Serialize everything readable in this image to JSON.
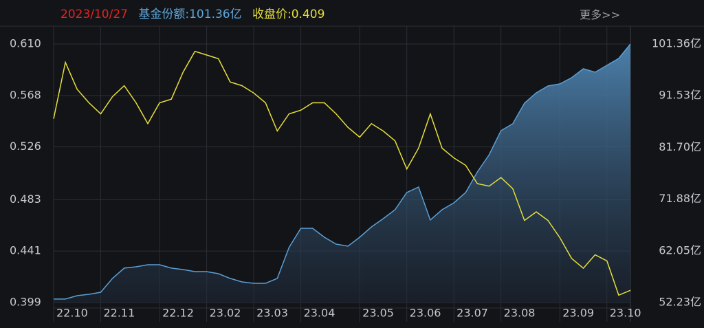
{
  "header": {
    "date": "2023/10/27",
    "share": "基金份额:101.36亿",
    "price": "收盘价:0.409",
    "more": "更多>>"
  },
  "chart_data": {
    "type": "line",
    "categories": [
      "22.10",
      null,
      null,
      null,
      "22.11",
      null,
      null,
      null,
      null,
      "22.12",
      null,
      null,
      null,
      "23.02",
      null,
      null,
      null,
      "23.03",
      null,
      null,
      null,
      "23.04",
      null,
      null,
      null,
      null,
      "23.05",
      null,
      null,
      null,
      "23.06",
      null,
      null,
      null,
      "23.07",
      null,
      null,
      null,
      "23.08",
      null,
      null,
      null,
      null,
      "23.09",
      null,
      null,
      null,
      "23.10",
      null,
      null
    ],
    "series": [
      {
        "color": "#e6df3c",
        "values": [
          0.549,
          0.595,
          0.573,
          0.562,
          0.553,
          0.567,
          0.576,
          0.562,
          0.545,
          0.562,
          0.565,
          0.587,
          0.604,
          0.601,
          0.598,
          0.579,
          0.576,
          0.57,
          0.562,
          0.539,
          0.553,
          0.556,
          0.562,
          0.562,
          0.553,
          0.542,
          0.534,
          0.545,
          0.539,
          0.531,
          0.508,
          0.525,
          0.553,
          0.525,
          0.517,
          0.511,
          0.496,
          0.494,
          0.501,
          0.492,
          0.466,
          0.473,
          0.466,
          0.452,
          0.435,
          0.427,
          0.438,
          0.433,
          0.405,
          0.409
        ]
      },
      {
        "color": "#5a9fd6",
        "axis": "y2",
        "values": [
          52.89,
          52.89,
          53.54,
          53.8,
          54.19,
          56.81,
          58.77,
          59.03,
          59.42,
          59.42,
          58.77,
          58.5,
          58.11,
          58.11,
          57.72,
          56.81,
          56.15,
          55.89,
          55.89,
          56.81,
          62.68,
          66.34,
          66.34,
          64.64,
          63.34,
          62.95,
          64.64,
          66.6,
          68.17,
          69.87,
          73.14,
          74.18,
          67.91,
          69.87,
          71.18,
          73.14,
          77.06,
          80.32,
          84.9,
          86.2,
          90.12,
          92.08,
          93.39,
          93.78,
          94.96,
          96.66,
          96.0,
          97.31,
          98.62,
          101.36
        ]
      }
    ],
    "ylim": [
      0.399,
      0.61
    ],
    "yticks": [
      0.399,
      0.441,
      0.483,
      0.526,
      0.568,
      {
        "value": 0.61,
        "label": "0.610"
      }
    ],
    "y2lim": [
      52.23,
      101.36
    ],
    "y2ticks": [
      {
        "value": 52.23,
        "label": "52.23亿"
      },
      {
        "value": 62.05,
        "label": "62.05亿"
      },
      {
        "value": 71.88,
        "label": "71.88亿"
      },
      {
        "value": 81.7,
        "label": "81.70亿"
      },
      {
        "value": 91.53,
        "label": "91.53亿"
      },
      {
        "value": 101.36,
        "label": "101.36亿"
      }
    ],
    "grid": true
  }
}
